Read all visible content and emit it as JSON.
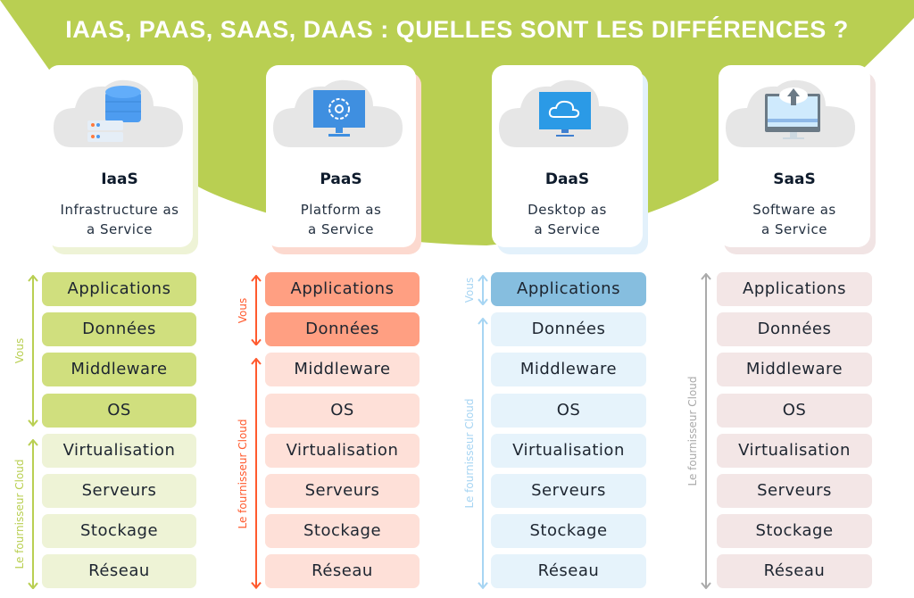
{
  "title": "IAAS, PAAS, SAAS, DAAS : QUELLES SONT LES DIFFÉRENCES ?",
  "colors": {
    "green": "#b9cf52",
    "orange": "#ff5a2e",
    "blue": "#a7d5f3",
    "gray": "#aaaaaa"
  },
  "models": [
    {
      "name": "IaaS",
      "desc1": "Infrastructure as",
      "desc2": "a Service",
      "icon": "database-server-icon",
      "vous": "Vous",
      "cloud": "Le fournisseur Cloud",
      "user_layers": 4
    },
    {
      "name": "PaaS",
      "desc1": "Platform as",
      "desc2": "a Service",
      "icon": "monitor-gear-icon",
      "vous": "Vous",
      "cloud": "Le fournisseur Cloud",
      "user_layers": 2
    },
    {
      "name": "DaaS",
      "desc1": "Desktop as",
      "desc2": "a Service",
      "icon": "monitor-cloud-icon",
      "vous": "Vous",
      "cloud": "Le fournisseur Cloud",
      "user_layers": 1
    },
    {
      "name": "SaaS",
      "desc1": "Software as",
      "desc2": "a Service",
      "icon": "monitor-upload-icon",
      "cloud": "Le fournisseur Cloud",
      "user_layers": 0
    }
  ],
  "layers": [
    "Applications",
    "Données",
    "Middleware",
    "OS",
    "Virtualisation",
    "Serveurs",
    "Stockage",
    "Réseau"
  ]
}
